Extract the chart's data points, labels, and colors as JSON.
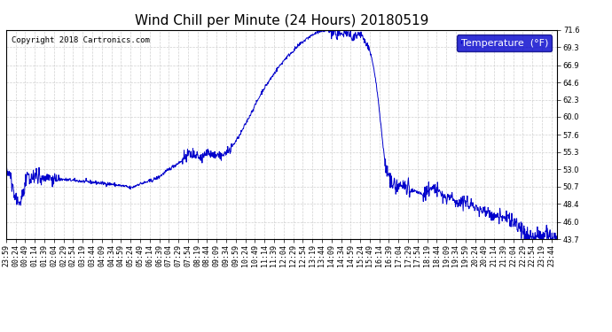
{
  "title": "Wind Chill per Minute (24 Hours) 20180519",
  "copyright": "Copyright 2018 Cartronics.com",
  "legend_label": "Temperature  (°F)",
  "line_color": "#0000CC",
  "background_color": "#ffffff",
  "grid_color": "#cccccc",
  "ylim": [
    43.7,
    71.6
  ],
  "yticks": [
    43.7,
    46.0,
    48.4,
    50.7,
    53.0,
    55.3,
    57.6,
    60.0,
    62.3,
    64.6,
    66.9,
    69.3,
    71.6
  ],
  "x_tick_interval": 25,
  "title_fontsize": 11,
  "tick_fontsize": 6,
  "legend_fontsize": 8,
  "copyright_fontsize": 6.5
}
